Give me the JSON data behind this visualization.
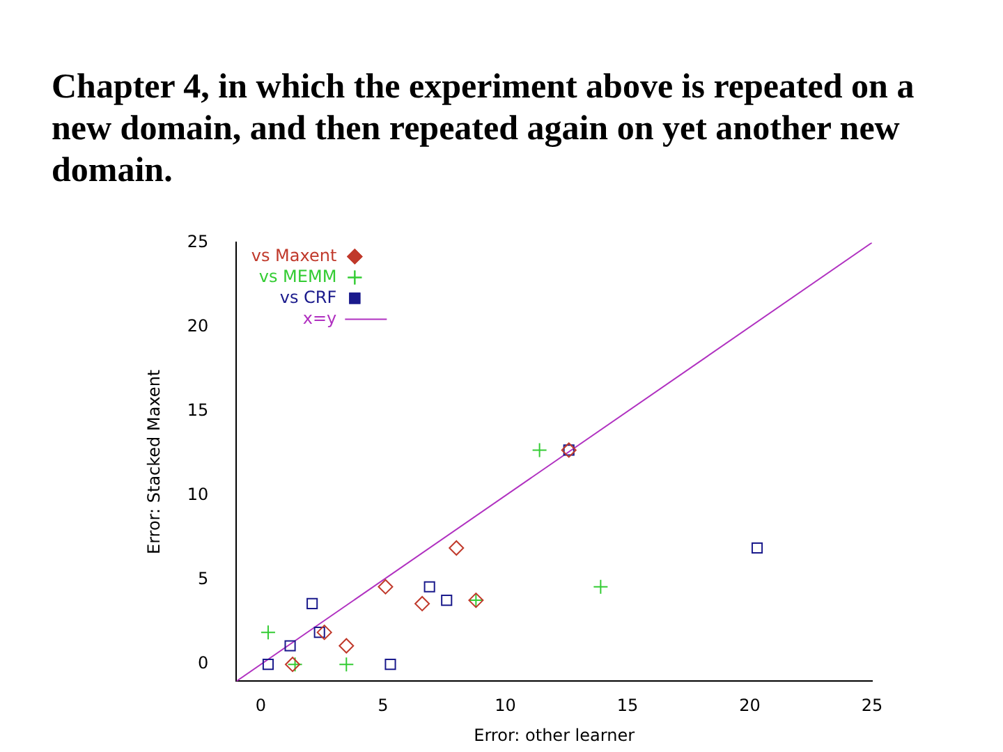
{
  "chart_data": {
    "type": "scatter",
    "title": "Chapter 4, in which the experiment above is repeated on a new domain, and then repeated again on yet another new domain.",
    "xlabel": "Error: other learner",
    "ylabel": "Error: Stacked Maxent",
    "xlim": [
      -1,
      25
    ],
    "ylim": [
      -1,
      25
    ],
    "xticks": [
      0,
      5,
      10,
      15,
      20,
      25
    ],
    "yticks": [
      0,
      5,
      10,
      15,
      20,
      25
    ],
    "grid": false,
    "legend": "top left",
    "series": [
      {
        "name": "vs Maxent",
        "color": "#c0392b",
        "marker": "diamond",
        "x": [
          8.0,
          5.1,
          6.6,
          3.5,
          1.3,
          2.6,
          12.6,
          8.8
        ],
        "values": [
          6.9,
          4.6,
          3.6,
          1.1,
          0,
          1.9,
          12.7,
          3.8
        ]
      },
      {
        "name": "vs MEMM",
        "color": "#33cc33",
        "marker": "cross",
        "x": [
          11.4,
          13.9,
          0.3,
          3.5,
          1.4,
          8.8
        ],
        "values": [
          12.7,
          4.6,
          1.9,
          0,
          0,
          3.8
        ]
      },
      {
        "name": "vs CRF",
        "color": "#1a1a8c",
        "marker": "square",
        "x": [
          12.6,
          20.3,
          6.9,
          7.6,
          2.1,
          2.4,
          1.2,
          0.3,
          5.3
        ],
        "values": [
          12.7,
          6.9,
          4.6,
          3.8,
          3.6,
          1.9,
          1.1,
          0,
          0
        ]
      },
      {
        "name": "x=y",
        "type": "line",
        "color": "#b030c0",
        "marker": "none",
        "x": [
          -1,
          25
        ],
        "values": [
          -1,
          25
        ]
      }
    ]
  }
}
